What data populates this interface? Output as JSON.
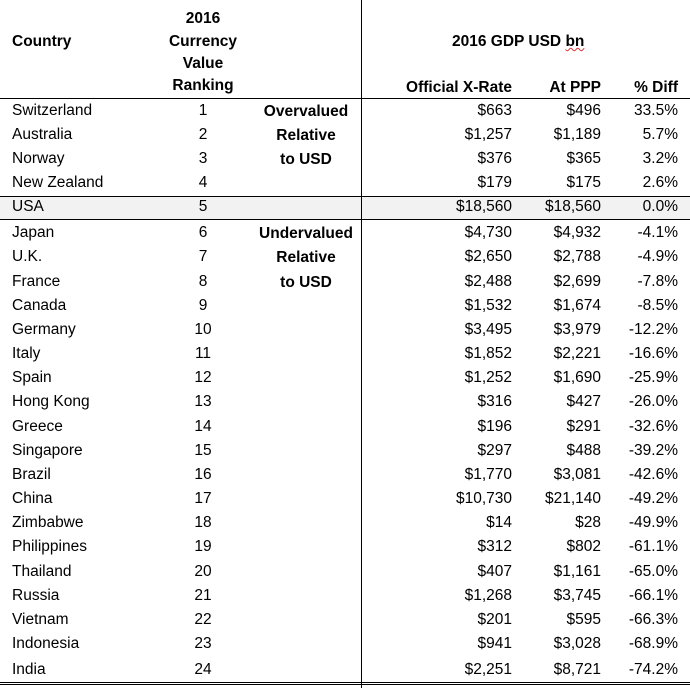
{
  "headers": {
    "country": "Country",
    "ranking_lines": [
      "2016",
      "Currency",
      "Value",
      "Ranking"
    ],
    "gdp_title_prefix": "2016 GDP USD ",
    "gdp_title_unit": "bn",
    "official": "Official X-Rate",
    "ppp": "At PPP",
    "diff": "% Diff"
  },
  "notes": {
    "overvalued": [
      "Overvalued",
      "Relative",
      "to USD"
    ],
    "undervalued": [
      "Undervalued",
      "Relative",
      "to USD"
    ]
  },
  "rows": [
    {
      "country": "Switzerland",
      "rank": "1",
      "official": "$663",
      "ppp": "$496",
      "diff": "33.5%"
    },
    {
      "country": "Australia",
      "rank": "2",
      "official": "$1,257",
      "ppp": "$1,189",
      "diff": "5.7%"
    },
    {
      "country": "Norway",
      "rank": "3",
      "official": "$376",
      "ppp": "$365",
      "diff": "3.2%"
    },
    {
      "country": "New Zealand",
      "rank": "4",
      "official": "$179",
      "ppp": "$175",
      "diff": "2.6%"
    },
    {
      "country": "USA",
      "rank": "5",
      "official": "$18,560",
      "ppp": "$18,560",
      "diff": "0.0%"
    },
    {
      "country": "Japan",
      "rank": "6",
      "official": "$4,730",
      "ppp": "$4,932",
      "diff": "-4.1%"
    },
    {
      "country": "U.K.",
      "rank": "7",
      "official": "$2,650",
      "ppp": "$2,788",
      "diff": "-4.9%"
    },
    {
      "country": "France",
      "rank": "8",
      "official": "$2,488",
      "ppp": "$2,699",
      "diff": "-7.8%"
    },
    {
      "country": "Canada",
      "rank": "9",
      "official": "$1,532",
      "ppp": "$1,674",
      "diff": "-8.5%"
    },
    {
      "country": "Germany",
      "rank": "10",
      "official": "$3,495",
      "ppp": "$3,979",
      "diff": "-12.2%"
    },
    {
      "country": "Italy",
      "rank": "11",
      "official": "$1,852",
      "ppp": "$2,221",
      "diff": "-16.6%"
    },
    {
      "country": "Spain",
      "rank": "12",
      "official": "$1,252",
      "ppp": "$1,690",
      "diff": "-25.9%"
    },
    {
      "country": "Hong Kong",
      "rank": "13",
      "official": "$316",
      "ppp": "$427",
      "diff": "-26.0%"
    },
    {
      "country": "Greece",
      "rank": "14",
      "official": "$196",
      "ppp": "$291",
      "diff": "-32.6%"
    },
    {
      "country": "Singapore",
      "rank": "15",
      "official": "$297",
      "ppp": "$488",
      "diff": "-39.2%"
    },
    {
      "country": "Brazil",
      "rank": "16",
      "official": "$1,770",
      "ppp": "$3,081",
      "diff": "-42.6%"
    },
    {
      "country": "China",
      "rank": "17",
      "official": "$10,730",
      "ppp": "$21,140",
      "diff": "-49.2%"
    },
    {
      "country": "Zimbabwe",
      "rank": "18",
      "official": "$14",
      "ppp": "$28",
      "diff": "-49.9%"
    },
    {
      "country": "Philippines",
      "rank": "19",
      "official": "$312",
      "ppp": "$802",
      "diff": "-61.1%"
    },
    {
      "country": "Thailand",
      "rank": "20",
      "official": "$407",
      "ppp": "$1,161",
      "diff": "-65.0%"
    },
    {
      "country": "Russia",
      "rank": "21",
      "official": "$1,268",
      "ppp": "$3,745",
      "diff": "-66.1%"
    },
    {
      "country": "Vietnam",
      "rank": "22",
      "official": "$201",
      "ppp": "$595",
      "diff": "-66.3%"
    },
    {
      "country": "Indonesia",
      "rank": "23",
      "official": "$941",
      "ppp": "$3,028",
      "diff": "-68.9%"
    },
    {
      "country": "India",
      "rank": "24",
      "official": "$2,251",
      "ppp": "$8,721",
      "diff": "-74.2%"
    }
  ]
}
